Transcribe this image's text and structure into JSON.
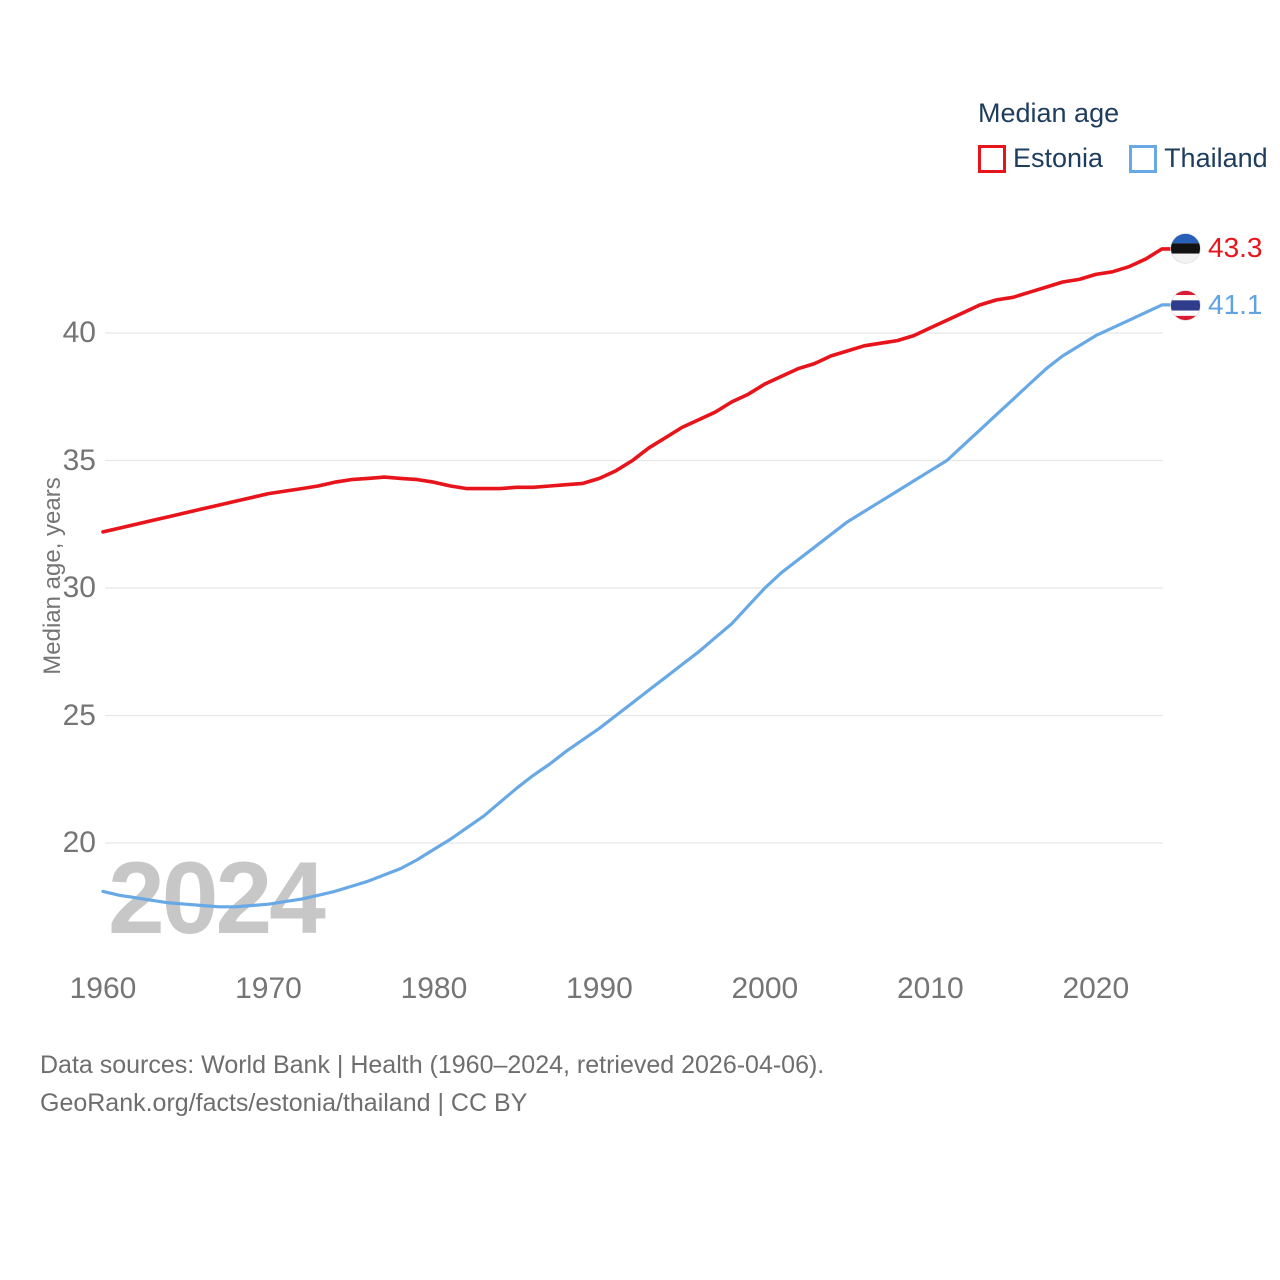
{
  "legend": {
    "title": "Median age",
    "items": [
      {
        "label": "Estonia",
        "color": "#e8141b"
      },
      {
        "label": "Thailand",
        "color": "#68a9e5"
      }
    ]
  },
  "watermark": "2024",
  "footer": {
    "line1": "Data sources: World Bank | Health (1960–2024, retrieved 2026-04-06).",
    "line2": "GeoRank.org/facts/estonia/thailand | CC BY"
  },
  "chart_data": {
    "type": "line",
    "title": "Median age",
    "xlabel": "",
    "ylabel": "Median age, years",
    "xlim": [
      1960,
      2024
    ],
    "ylim": [
      17,
      44
    ],
    "grid": "horizontal",
    "legend_position": "top-right",
    "x_ticks": [
      1960,
      1970,
      1980,
      1990,
      2000,
      2010,
      2020
    ],
    "y_ticks": [
      20,
      25,
      30,
      35,
      40
    ],
    "x": [
      1960,
      1961,
      1962,
      1963,
      1964,
      1965,
      1966,
      1967,
      1968,
      1969,
      1970,
      1971,
      1972,
      1973,
      1974,
      1975,
      1976,
      1977,
      1978,
      1979,
      1980,
      1981,
      1982,
      1983,
      1984,
      1985,
      1986,
      1987,
      1988,
      1989,
      1990,
      1991,
      1992,
      1993,
      1994,
      1995,
      1996,
      1997,
      1998,
      1999,
      2000,
      2001,
      2002,
      2003,
      2004,
      2005,
      2006,
      2007,
      2008,
      2009,
      2010,
      2011,
      2012,
      2013,
      2014,
      2015,
      2016,
      2017,
      2018,
      2019,
      2020,
      2021,
      2022,
      2023,
      2024
    ],
    "series": [
      {
        "name": "Estonia",
        "color": "#e8141b",
        "end_label": "43.3",
        "values": [
          32.2,
          32.35,
          32.5,
          32.65,
          32.8,
          32.95,
          33.1,
          33.25,
          33.4,
          33.55,
          33.7,
          33.8,
          33.9,
          34.0,
          34.15,
          34.25,
          34.3,
          34.35,
          34.3,
          34.25,
          34.15,
          34.0,
          33.9,
          33.9,
          33.9,
          33.95,
          33.95,
          34.0,
          34.05,
          34.1,
          34.3,
          34.6,
          35.0,
          35.5,
          35.9,
          36.3,
          36.6,
          36.9,
          37.3,
          37.6,
          38.0,
          38.3,
          38.6,
          38.8,
          39.1,
          39.3,
          39.5,
          39.6,
          39.7,
          39.9,
          40.2,
          40.5,
          40.8,
          41.1,
          41.3,
          41.4,
          41.6,
          41.8,
          42.0,
          42.1,
          42.3,
          42.4,
          42.6,
          42.9,
          43.3
        ]
      },
      {
        "name": "Thailand",
        "color": "#68a9e5",
        "end_label": "41.1",
        "values": [
          18.1,
          17.95,
          17.85,
          17.75,
          17.65,
          17.6,
          17.55,
          17.5,
          17.5,
          17.55,
          17.6,
          17.7,
          17.8,
          17.95,
          18.1,
          18.3,
          18.5,
          18.75,
          19.0,
          19.35,
          19.75,
          20.15,
          20.6,
          21.05,
          21.6,
          22.15,
          22.65,
          23.1,
          23.6,
          24.05,
          24.5,
          25.0,
          25.5,
          26.0,
          26.5,
          27.0,
          27.5,
          28.05,
          28.6,
          29.3,
          30.0,
          30.6,
          31.1,
          31.6,
          32.1,
          32.6,
          33.0,
          33.4,
          33.8,
          34.2,
          34.6,
          35.0,
          35.6,
          36.2,
          36.8,
          37.4,
          38.0,
          38.6,
          39.1,
          39.5,
          39.9,
          40.2,
          40.5,
          40.8,
          41.1
        ]
      }
    ]
  }
}
